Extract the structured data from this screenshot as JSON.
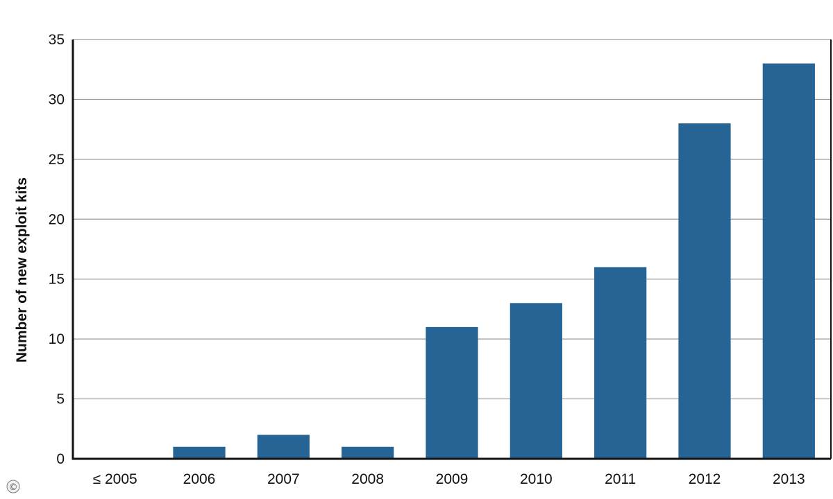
{
  "chart_data": {
    "type": "bar",
    "title": "",
    "xlabel": "",
    "ylabel": "Number of new exploit kits",
    "categories": [
      "≤ 2005",
      "2006",
      "2007",
      "2008",
      "2009",
      "2010",
      "2011",
      "2012",
      "2013"
    ],
    "values": [
      0,
      1,
      2,
      1,
      11,
      13,
      16,
      28,
      33
    ],
    "ylim": [
      0,
      35
    ],
    "yticks": [
      0,
      5,
      10,
      15,
      20,
      25,
      30,
      35
    ],
    "ytick_labels": [
      "0",
      "5",
      "10",
      "15",
      "20",
      "25",
      "30",
      "35"
    ],
    "grid": "horizontal",
    "bar_color": "#276496"
  },
  "copyright_symbol": "©"
}
